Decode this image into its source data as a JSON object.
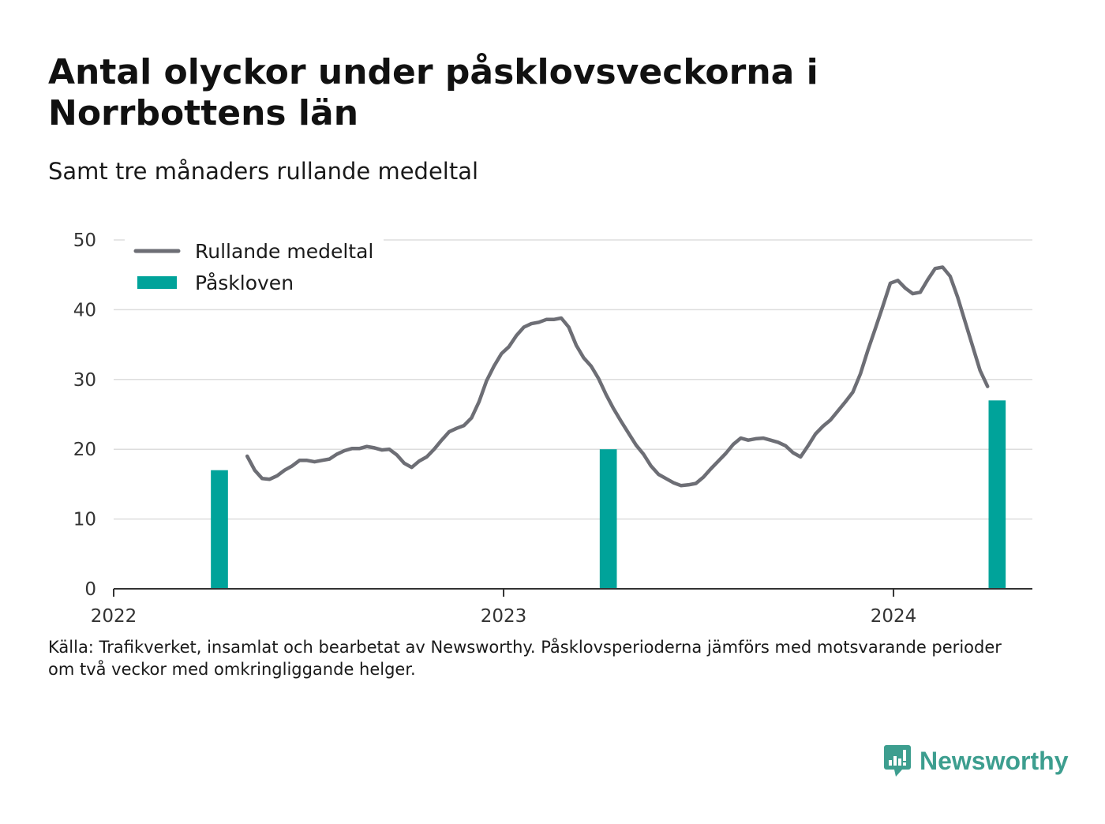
{
  "title": "Antal olyckor under påsklovsveckorna i Norrbottens län",
  "subtitle": "Samt tre månaders rullande medeltal",
  "source": {
    "line1": "Källa: Trafikverket, insamlat och bearbetat av Newsworthy. Påsklovsperioderna jämförs med motsvarande perioder",
    "line2": "om två veckor med omkringliggande helger."
  },
  "brand": {
    "name": "Newsworthy",
    "icon": "newsworthy-logo-icon",
    "color": "#3d9e8f"
  },
  "chart_data": {
    "type": "bar+line",
    "ylim": [
      0,
      50
    ],
    "yticks": [
      0,
      10,
      20,
      30,
      40,
      50
    ],
    "xlim": [
      "2022-01-01",
      "2024-05-10"
    ],
    "xticks": [
      {
        "date": "2022-01-01",
        "label": "2022"
      },
      {
        "date": "2023-01-01",
        "label": "2023"
      },
      {
        "date": "2024-01-01",
        "label": "2024"
      }
    ],
    "grid": true,
    "legend_position": "top-left",
    "colors": {
      "line": "#6d6e75",
      "bars": "#00a39a",
      "grid": "#dddddd",
      "axis": "#333333"
    },
    "legend": [
      {
        "label": "Rullande medeltal",
        "kind": "line"
      },
      {
        "label": "Påskloven",
        "kind": "bar"
      }
    ],
    "bars": {
      "name": "Påskloven",
      "points": [
        {
          "start": "2022-04-02",
          "end": "2022-04-18",
          "value": 17
        },
        {
          "start": "2023-04-01",
          "end": "2023-04-17",
          "value": 20
        },
        {
          "start": "2024-03-30",
          "end": "2024-04-15",
          "value": 27
        }
      ]
    },
    "line": {
      "name": "Rullande medeltal",
      "points": [
        [
          "2022-05-06",
          19.0
        ],
        [
          "2022-05-13",
          17.0
        ],
        [
          "2022-05-20",
          15.8
        ],
        [
          "2022-05-27",
          15.7
        ],
        [
          "2022-06-03",
          16.2
        ],
        [
          "2022-06-10",
          17.0
        ],
        [
          "2022-06-17",
          17.6
        ],
        [
          "2022-06-24",
          18.4
        ],
        [
          "2022-07-01",
          18.4
        ],
        [
          "2022-07-08",
          18.2
        ],
        [
          "2022-07-15",
          18.4
        ],
        [
          "2022-07-22",
          18.6
        ],
        [
          "2022-07-29",
          19.3
        ],
        [
          "2022-08-05",
          19.8
        ],
        [
          "2022-08-12",
          20.1
        ],
        [
          "2022-08-19",
          20.1
        ],
        [
          "2022-08-26",
          20.4
        ],
        [
          "2022-09-02",
          20.2
        ],
        [
          "2022-09-09",
          19.9
        ],
        [
          "2022-09-16",
          20.0
        ],
        [
          "2022-09-23",
          19.2
        ],
        [
          "2022-09-30",
          18.0
        ],
        [
          "2022-10-07",
          17.4
        ],
        [
          "2022-10-14",
          18.3
        ],
        [
          "2022-10-21",
          18.9
        ],
        [
          "2022-10-28",
          20.0
        ],
        [
          "2022-11-04",
          21.3
        ],
        [
          "2022-11-11",
          22.5
        ],
        [
          "2022-11-18",
          23.0
        ],
        [
          "2022-11-25",
          23.4
        ],
        [
          "2022-12-02",
          24.5
        ],
        [
          "2022-12-09",
          26.8
        ],
        [
          "2022-12-16",
          29.8
        ],
        [
          "2022-12-23",
          31.9
        ],
        [
          "2022-12-30",
          33.7
        ],
        [
          "2023-01-06",
          34.7
        ],
        [
          "2023-01-13",
          36.3
        ],
        [
          "2023-01-20",
          37.5
        ],
        [
          "2023-01-27",
          38.0
        ],
        [
          "2023-02-03",
          38.2
        ],
        [
          "2023-02-10",
          38.6
        ],
        [
          "2023-02-17",
          38.6
        ],
        [
          "2023-02-24",
          38.8
        ],
        [
          "2023-03-03",
          37.5
        ],
        [
          "2023-03-10",
          34.9
        ],
        [
          "2023-03-17",
          33.1
        ],
        [
          "2023-03-24",
          31.9
        ],
        [
          "2023-03-31",
          30.1
        ],
        [
          "2023-04-07",
          27.8
        ],
        [
          "2023-04-14",
          25.8
        ],
        [
          "2023-04-21",
          24.0
        ],
        [
          "2023-04-28",
          22.3
        ],
        [
          "2023-05-05",
          20.6
        ],
        [
          "2023-05-12",
          19.3
        ],
        [
          "2023-05-19",
          17.6
        ],
        [
          "2023-05-26",
          16.4
        ],
        [
          "2023-06-02",
          15.8
        ],
        [
          "2023-06-09",
          15.2
        ],
        [
          "2023-06-16",
          14.8
        ],
        [
          "2023-06-23",
          14.9
        ],
        [
          "2023-06-30",
          15.1
        ],
        [
          "2023-07-07",
          16.0
        ],
        [
          "2023-07-14",
          17.2
        ],
        [
          "2023-07-21",
          18.3
        ],
        [
          "2023-07-28",
          19.4
        ],
        [
          "2023-08-04",
          20.7
        ],
        [
          "2023-08-11",
          21.6
        ],
        [
          "2023-08-18",
          21.3
        ],
        [
          "2023-08-25",
          21.5
        ],
        [
          "2023-09-01",
          21.6
        ],
        [
          "2023-09-08",
          21.3
        ],
        [
          "2023-09-15",
          21.0
        ],
        [
          "2023-09-22",
          20.5
        ],
        [
          "2023-09-29",
          19.5
        ],
        [
          "2023-10-06",
          18.9
        ],
        [
          "2023-10-13",
          20.5
        ],
        [
          "2023-10-20",
          22.2
        ],
        [
          "2023-10-27",
          23.3
        ],
        [
          "2023-11-03",
          24.2
        ],
        [
          "2023-11-10",
          25.5
        ],
        [
          "2023-11-17",
          26.8
        ],
        [
          "2023-11-24",
          28.2
        ],
        [
          "2023-12-01",
          30.8
        ],
        [
          "2023-12-08",
          34.2
        ],
        [
          "2023-12-15",
          37.3
        ],
        [
          "2023-12-22",
          40.5
        ],
        [
          "2023-12-29",
          43.8
        ],
        [
          "2024-01-05",
          44.2
        ],
        [
          "2024-01-12",
          43.1
        ],
        [
          "2024-01-19",
          42.3
        ],
        [
          "2024-01-26",
          42.5
        ],
        [
          "2024-02-02",
          44.3
        ],
        [
          "2024-02-09",
          45.9
        ],
        [
          "2024-02-16",
          46.1
        ],
        [
          "2024-02-23",
          44.8
        ],
        [
          "2024-03-01",
          41.8
        ],
        [
          "2024-03-08",
          38.3
        ],
        [
          "2024-03-15",
          34.8
        ],
        [
          "2024-03-22",
          31.3
        ],
        [
          "2024-03-29",
          29.0
        ]
      ]
    }
  }
}
